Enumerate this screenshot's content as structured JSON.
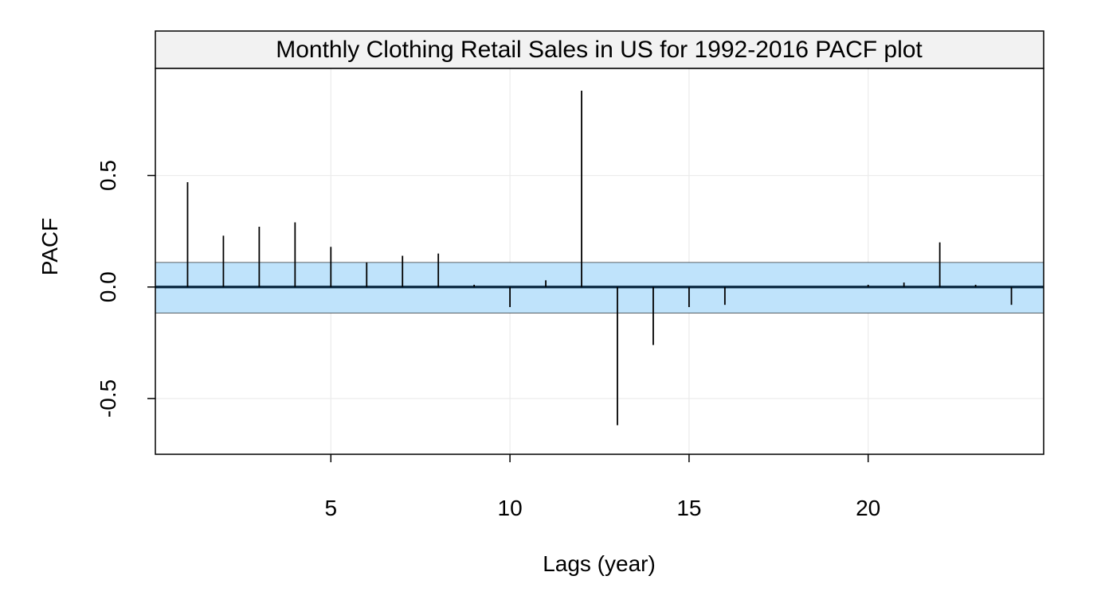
{
  "chart_data": {
    "type": "bar",
    "title": "Monthly Clothing Retail Sales in US for 1992-2016 PACF plot",
    "xlabel": "Lags (year)",
    "ylabel": "PACF",
    "x": [
      1,
      2,
      3,
      4,
      5,
      6,
      7,
      8,
      9,
      10,
      11,
      12,
      13,
      14,
      15,
      16,
      17,
      18,
      19,
      20,
      21,
      22,
      23,
      24
    ],
    "values": [
      0.47,
      0.23,
      0.27,
      0.29,
      0.18,
      0.11,
      0.14,
      0.15,
      0.01,
      -0.09,
      0.03,
      0.88,
      -0.62,
      -0.26,
      -0.09,
      -0.08,
      0.0,
      0.0,
      0.0,
      0.01,
      0.02,
      0.2,
      0.01,
      -0.08
    ],
    "confidence_band": [
      -0.117,
      0.11
    ],
    "xlim": [
      0.1,
      24.9
    ],
    "ylim": [
      -0.75,
      0.98
    ],
    "xticks": [
      5,
      10,
      15,
      20
    ],
    "xtick_labels": [
      "5",
      "10",
      "15",
      "20"
    ],
    "yticks": [
      -0.5,
      0.0,
      0.5
    ],
    "ytick_labels": [
      "-0.5",
      "0.0",
      "0.5"
    ],
    "grid": true,
    "colors": {
      "band_fill": "#BFE3FB",
      "bar": "#000000",
      "zero_line": "#0A2840",
      "grid": "#EBEBEB",
      "strip_fill": "#F2F2F2"
    }
  }
}
